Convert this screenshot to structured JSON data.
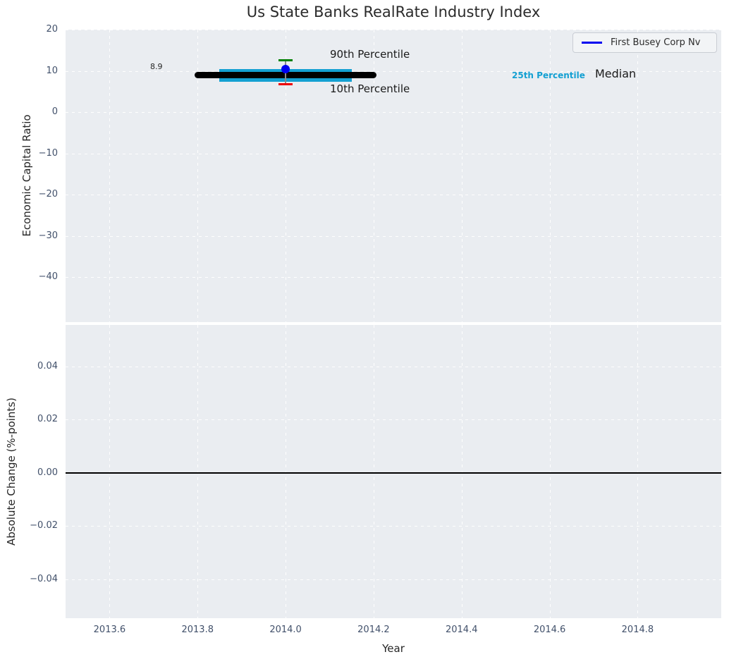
{
  "title": "Us State Banks RealRate Industry Index",
  "legend": {
    "label": "First Busey Corp Nv",
    "line_color": "#0000f0",
    "position": "upper right"
  },
  "annotations": {
    "p90_label": "90th Percentile",
    "p10_label": "10th Percentile",
    "p25_label": "25th Percentile",
    "median_label": "Median",
    "median_value": "8.9"
  },
  "colors": {
    "axes_background": "#eaedf1",
    "grid": "#ffffff",
    "tick_label": "#41506a",
    "median": "#000000",
    "percentile_band": "#14a0d2",
    "p90_cap": "#008000",
    "p10_cap": "#ee0004",
    "company_point": "#0000f0",
    "zero_line": "#000000"
  },
  "chart_data": [
    {
      "type": "line",
      "title": "Us State Banks RealRate Industry Index",
      "xlabel": "",
      "ylabel": "Economic Capital Ratio",
      "xlim": [
        2013.5,
        2014.99
      ],
      "ylim": [
        -51,
        20
      ],
      "grid": true,
      "legend_position": "upper right",
      "xticks": [
        2013.6,
        2013.8,
        2014.0,
        2014.2,
        2014.4,
        2014.6,
        2014.8
      ],
      "yticks": [
        20,
        10,
        0,
        -10,
        -20,
        -30,
        -40
      ],
      "ytick_labels": [
        "20",
        "10",
        "0",
        "−10",
        "−20",
        "−30",
        "−40"
      ],
      "series": [
        {
          "name": "First Busey Corp Nv",
          "type": "point",
          "x": 2014.0,
          "y": 10.4,
          "color": "#0000f0"
        },
        {
          "name": "Median",
          "type": "line",
          "x": [
            2013.8,
            2014.2
          ],
          "y": [
            8.9,
            8.9
          ],
          "color": "#000000",
          "value_label": "8.9"
        },
        {
          "name": "25th-75th Percentile Band",
          "type": "thick-line",
          "x": [
            2013.85,
            2014.15
          ],
          "y": [
            8.9,
            8.9
          ],
          "color": "#14a0d2"
        },
        {
          "name": "90th Percentile",
          "type": "errorbar-cap",
          "x": 2014.0,
          "y": 12.5,
          "color": "#008000"
        },
        {
          "name": "10th Percentile",
          "type": "errorbar-cap",
          "x": 2014.0,
          "y": 6.8,
          "color": "#ee0004"
        }
      ]
    },
    {
      "type": "line",
      "title": "",
      "xlabel": "Year",
      "ylabel": "Absolute Change (%-points)",
      "xlim": [
        2013.5,
        2014.99
      ],
      "ylim": [
        -0.055,
        0.056
      ],
      "grid": true,
      "xticks": [
        2013.6,
        2013.8,
        2014.0,
        2014.2,
        2014.4,
        2014.6,
        2014.8
      ],
      "xtick_labels": [
        "2013.6",
        "2013.8",
        "2014.0",
        "2014.2",
        "2014.4",
        "2014.6",
        "2014.8"
      ],
      "yticks": [
        0.04,
        0.02,
        0.0,
        -0.02,
        -0.04
      ],
      "ytick_labels": [
        "0.04",
        "0.02",
        "0.00",
        "−0.02",
        "−0.04"
      ],
      "series": [
        {
          "name": "zero-reference-line",
          "type": "hline",
          "y": 0.0,
          "color": "#000000"
        }
      ]
    }
  ]
}
